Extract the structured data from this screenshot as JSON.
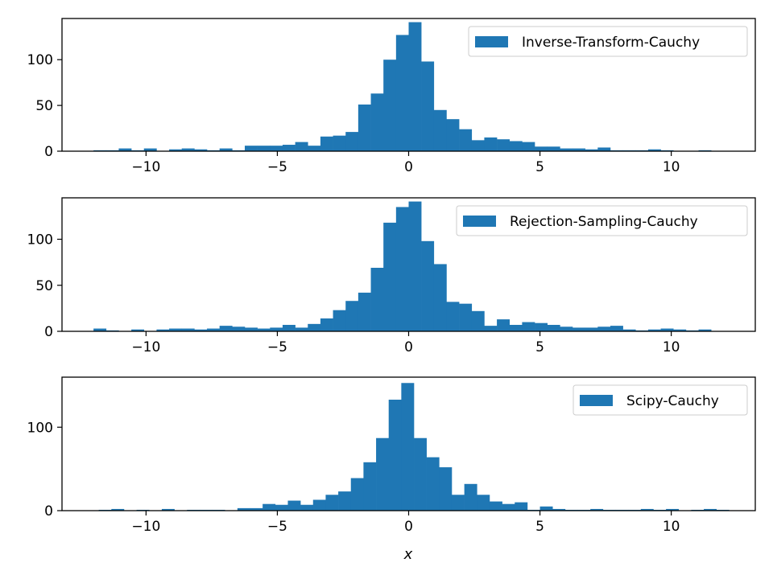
{
  "figure": {
    "background": "#ffffff",
    "bar_color": "#1f77b4",
    "xlabel": "x"
  },
  "chart_data": [
    {
      "type": "bar",
      "series_name": "Inverse-Transform-Cauchy",
      "legend_position": "upper right",
      "xlim": [
        -13.2,
        13.2
      ],
      "ylim": [
        0,
        145
      ],
      "xticks": [
        -10,
        -5,
        0,
        5,
        10
      ],
      "xtick_labels": [
        "−10",
        "−5",
        "0",
        "5",
        "10"
      ],
      "yticks": [
        0,
        50,
        100
      ],
      "bins_start": -12.0,
      "bin_width": 0.48,
      "counts": [
        1,
        1,
        3,
        1,
        3,
        0,
        2,
        3,
        2,
        1,
        3,
        1,
        6,
        6,
        6,
        7,
        10,
        6,
        16,
        17,
        21,
        51,
        63,
        100,
        127,
        141,
        98,
        45,
        35,
        24,
        12,
        15,
        13,
        11,
        10,
        5,
        5,
        3,
        3,
        2,
        4,
        1,
        1,
        1,
        2,
        1,
        0,
        0,
        1,
        0
      ]
    },
    {
      "type": "bar",
      "series_name": "Rejection-Sampling-Cauchy",
      "legend_position": "upper right",
      "xlim": [
        -13.2,
        13.2
      ],
      "ylim": [
        0,
        145
      ],
      "xticks": [
        -10,
        -5,
        0,
        5,
        10
      ],
      "xtick_labels": [
        "−10",
        "−5",
        "0",
        "5",
        "10"
      ],
      "yticks": [
        0,
        50,
        100
      ],
      "bins_start": -12.0,
      "bin_width": 0.48,
      "counts": [
        3,
        1,
        0,
        2,
        0,
        2,
        3,
        3,
        2,
        3,
        6,
        5,
        4,
        3,
        4,
        7,
        4,
        8,
        14,
        23,
        33,
        42,
        69,
        118,
        135,
        141,
        98,
        73,
        32,
        30,
        22,
        6,
        13,
        7,
        10,
        9,
        7,
        5,
        4,
        4,
        5,
        6,
        2,
        1,
        2,
        3,
        2,
        1,
        2,
        0
      ]
    },
    {
      "type": "bar",
      "series_name": "Scipy-Cauchy",
      "legend_position": "upper right",
      "xlim": [
        -13.2,
        13.2
      ],
      "ylim": [
        0,
        160
      ],
      "xticks": [
        -10,
        -5,
        0,
        5,
        10
      ],
      "xtick_labels": [
        "−10",
        "−5",
        "0",
        "5",
        "10"
      ],
      "yticks": [
        0,
        100
      ],
      "bins_start": -11.8,
      "bin_width": 0.48,
      "counts": [
        1,
        2,
        0,
        1,
        0,
        2,
        0,
        1,
        1,
        1,
        0,
        3,
        3,
        8,
        7,
        12,
        7,
        13,
        19,
        23,
        39,
        58,
        87,
        133,
        153,
        87,
        64,
        52,
        19,
        32,
        19,
        11,
        8,
        10,
        1,
        5,
        2,
        1,
        1,
        2,
        1,
        1,
        1,
        2,
        1,
        2,
        0,
        1,
        2,
        1
      ]
    }
  ]
}
